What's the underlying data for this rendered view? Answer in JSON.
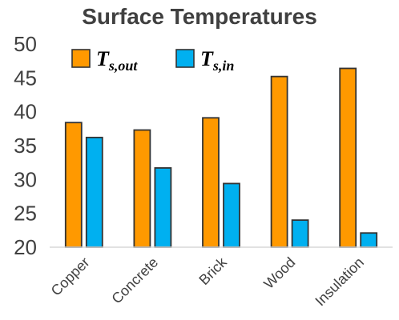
{
  "chart_data": {
    "type": "bar",
    "title": "Surface Temperatures",
    "categories": [
      "Copper",
      "Concrete",
      "Brick",
      "Wood",
      "Insulation"
    ],
    "series": [
      {
        "name": "T_s,out",
        "label_main": "T",
        "label_sub": "s,out",
        "color": "#FF9900",
        "values": [
          38.4,
          37.3,
          39.1,
          45.2,
          46.4
        ]
      },
      {
        "name": "T_s,in",
        "label_main": "T",
        "label_sub": "s,in",
        "color": "#00B0F0",
        "values": [
          36.2,
          31.7,
          29.4,
          24.0,
          22.1
        ]
      }
    ],
    "ylim": [
      20,
      50
    ],
    "yticks": [
      20,
      25,
      30,
      35,
      40,
      45,
      50
    ],
    "xlabel": "",
    "ylabel": "",
    "grid": false,
    "legend": "top-left",
    "bar_outline_color": "#333333",
    "axis_color": "#D9D9D9"
  }
}
